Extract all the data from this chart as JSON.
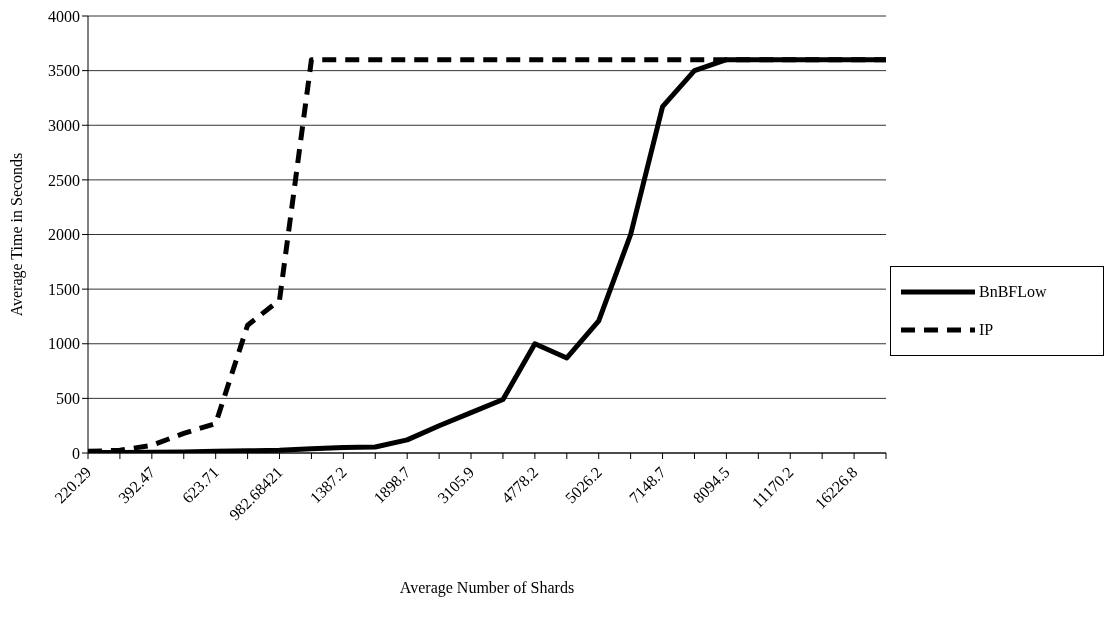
{
  "chart_data": {
    "type": "line",
    "xlabel": "Average Number of Shards",
    "ylabel": "Average Time in Seconds",
    "categories": [
      "220.29",
      null,
      "392.47",
      null,
      "623.71",
      null,
      "982.68421",
      null,
      "1387.2",
      null,
      "1898.7",
      null,
      "3105.9",
      null,
      "4778.2",
      null,
      "5026.2",
      null,
      "7148.7",
      null,
      "8094.5",
      null,
      "11170.2",
      null,
      "16226.8",
      null
    ],
    "series": [
      {
        "name": "BnBFLow",
        "color": "#000000",
        "line_style": "solid",
        "values": [
          5,
          5,
          8,
          10,
          15,
          20,
          25,
          40,
          50,
          55,
          120,
          250,
          370,
          490,
          1000,
          870,
          1210,
          2000,
          3170,
          3500,
          3600,
          3600,
          3600,
          3600,
          3600,
          3600
        ]
      },
      {
        "name": "IP",
        "color": "#000000",
        "line_style": "dashed",
        "values": [
          15,
          25,
          70,
          180,
          270,
          1170,
          1400,
          3600,
          3600,
          3600,
          3600,
          3600,
          3600,
          3600,
          3600,
          3600,
          3600,
          3600,
          3600,
          3600,
          3600,
          3600,
          3600,
          3600,
          3600,
          3600
        ]
      }
    ],
    "ylim": [
      0,
      4000
    ],
    "yticks": [
      0,
      500,
      1000,
      1500,
      2000,
      2500,
      3000,
      3500,
      4000
    ],
    "grid": "y",
    "legend": "right",
    "marker": "none"
  }
}
